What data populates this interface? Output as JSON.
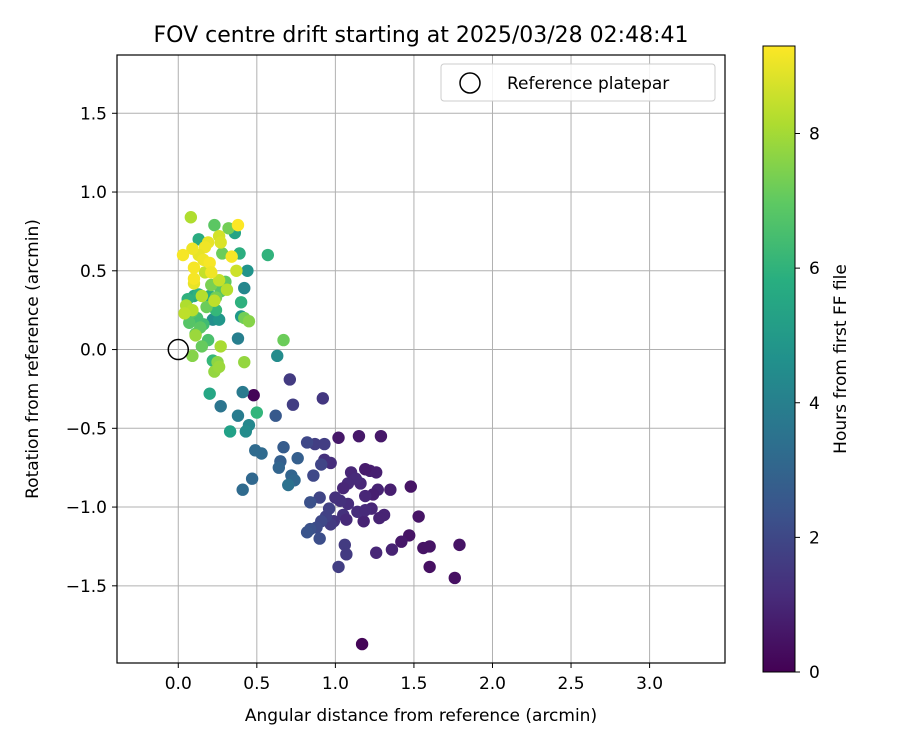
{
  "chart_data": {
    "type": "scatter",
    "title": "FOV centre drift starting at 2025/03/28 02:48:41",
    "xlabel": "Angular distance from reference (arcmin)",
    "ylabel": "Rotation from reference (arcmin)",
    "xlim": [
      -0.39,
      3.48
    ],
    "ylim": [
      -1.99,
      1.87
    ],
    "xticks": [
      0.0,
      0.5,
      1.0,
      1.5,
      2.0,
      2.5,
      3.0
    ],
    "xtick_labels": [
      "0.0",
      "0.5",
      "1.0",
      "1.5",
      "2.0",
      "2.5",
      "3.0"
    ],
    "yticks": [
      -1.5,
      -1.0,
      -0.5,
      0.0,
      0.5,
      1.0,
      1.5
    ],
    "ytick_labels": [
      "−1.5",
      "−1.0",
      "−0.5",
      "0.0",
      "0.5",
      "1.0",
      "1.5"
    ],
    "grid": true,
    "legend": {
      "position": "top-right",
      "entries": [
        {
          "label": "Reference platepar",
          "marker": "open-circle"
        }
      ]
    },
    "reference_point": {
      "x": 0.0,
      "y": 0.0
    },
    "colorbar": {
      "label": "Hours from first FF file",
      "colormap": "viridis",
      "range": [
        0,
        9.3
      ],
      "ticks": [
        0,
        2,
        4,
        6,
        8
      ],
      "tick_labels": [
        "0",
        "2",
        "4",
        "6",
        "8"
      ]
    },
    "points": [
      {
        "x": 1.17,
        "y": -1.87,
        "c": 0.1
      },
      {
        "x": 0.48,
        "y": -0.29,
        "c": 0.1
      },
      {
        "x": 1.76,
        "y": -1.45,
        "c": 0.4
      },
      {
        "x": 1.6,
        "y": -1.38,
        "c": 0.4
      },
      {
        "x": 1.79,
        "y": -1.24,
        "c": 0.5
      },
      {
        "x": 1.6,
        "y": -1.25,
        "c": 0.5
      },
      {
        "x": 1.56,
        "y": -1.26,
        "c": 0.5
      },
      {
        "x": 1.47,
        "y": -1.18,
        "c": 0.5
      },
      {
        "x": 1.42,
        "y": -1.22,
        "c": 0.6
      },
      {
        "x": 1.53,
        "y": -1.06,
        "c": 0.5
      },
      {
        "x": 1.48,
        "y": -0.87,
        "c": 0.5
      },
      {
        "x": 1.29,
        "y": -0.55,
        "c": 0.6
      },
      {
        "x": 1.15,
        "y": -0.55,
        "c": 0.6
      },
      {
        "x": 1.02,
        "y": -0.56,
        "c": 0.6
      },
      {
        "x": 1.36,
        "y": -1.27,
        "c": 0.9
      },
      {
        "x": 1.26,
        "y": -1.29,
        "c": 1.0
      },
      {
        "x": 1.18,
        "y": -1.09,
        "c": 0.9
      },
      {
        "x": 1.31,
        "y": -1.05,
        "c": 0.9
      },
      {
        "x": 1.35,
        "y": -0.89,
        "c": 0.8
      },
      {
        "x": 1.27,
        "y": -0.89,
        "c": 0.9
      },
      {
        "x": 1.24,
        "y": -0.92,
        "c": 0.8
      },
      {
        "x": 1.19,
        "y": -0.93,
        "c": 1.0
      },
      {
        "x": 1.26,
        "y": -0.78,
        "c": 0.8
      },
      {
        "x": 1.22,
        "y": -0.77,
        "c": 0.8
      },
      {
        "x": 1.19,
        "y": -0.76,
        "c": 0.7
      },
      {
        "x": 1.16,
        "y": -0.85,
        "c": 1.0
      },
      {
        "x": 1.1,
        "y": -0.78,
        "c": 1.0
      },
      {
        "x": 1.13,
        "y": -0.82,
        "c": 1.1
      },
      {
        "x": 1.08,
        "y": -0.85,
        "c": 1.1
      },
      {
        "x": 1.05,
        "y": -0.88,
        "c": 1.0
      },
      {
        "x": 0.97,
        "y": -0.72,
        "c": 1.2
      },
      {
        "x": 0.93,
        "y": -0.7,
        "c": 1.3
      },
      {
        "x": 0.92,
        "y": -0.31,
        "c": 1.5
      },
      {
        "x": 0.71,
        "y": -0.19,
        "c": 1.6
      },
      {
        "x": 0.73,
        "y": -0.35,
        "c": 1.7
      },
      {
        "x": 1.23,
        "y": -1.01,
        "c": 1.0
      },
      {
        "x": 1.28,
        "y": -1.07,
        "c": 0.9
      },
      {
        "x": 1.14,
        "y": -1.03,
        "c": 1.2
      },
      {
        "x": 1.19,
        "y": -1.02,
        "c": 1.1
      },
      {
        "x": 1.05,
        "y": -1.05,
        "c": 1.3
      },
      {
        "x": 1.07,
        "y": -1.08,
        "c": 1.1
      },
      {
        "x": 1.08,
        "y": -0.98,
        "c": 1.2
      },
      {
        "x": 1.03,
        "y": -0.96,
        "c": 1.3
      },
      {
        "x": 1.0,
        "y": -0.94,
        "c": 1.3
      },
      {
        "x": 0.99,
        "y": -1.09,
        "c": 1.4
      },
      {
        "x": 1.06,
        "y": -1.24,
        "c": 1.6
      },
      {
        "x": 1.07,
        "y": -1.3,
        "c": 1.6
      },
      {
        "x": 1.02,
        "y": -1.38,
        "c": 1.7
      },
      {
        "x": 0.97,
        "y": -1.11,
        "c": 1.6
      },
      {
        "x": 0.94,
        "y": -1.06,
        "c": 1.8
      },
      {
        "x": 0.96,
        "y": -1.01,
        "c": 1.8
      },
      {
        "x": 0.9,
        "y": -0.94,
        "c": 1.9
      },
      {
        "x": 0.91,
        "y": -1.09,
        "c": 2.0
      },
      {
        "x": 0.88,
        "y": -1.13,
        "c": 2.1
      },
      {
        "x": 0.9,
        "y": -1.2,
        "c": 2.2
      },
      {
        "x": 0.84,
        "y": -1.14,
        "c": 2.3
      },
      {
        "x": 0.82,
        "y": -1.16,
        "c": 2.4
      },
      {
        "x": 0.86,
        "y": -0.8,
        "c": 2.0
      },
      {
        "x": 0.91,
        "y": -0.73,
        "c": 1.9
      },
      {
        "x": 0.87,
        "y": -0.6,
        "c": 1.7
      },
      {
        "x": 0.93,
        "y": -0.6,
        "c": 1.7
      },
      {
        "x": 0.82,
        "y": -0.59,
        "c": 2.0
      },
      {
        "x": 0.84,
        "y": -0.97,
        "c": 2.3
      },
      {
        "x": 0.62,
        "y": -0.42,
        "c": 2.6
      },
      {
        "x": 0.67,
        "y": -0.62,
        "c": 2.7
      },
      {
        "x": 0.65,
        "y": -0.71,
        "c": 2.8
      },
      {
        "x": 0.76,
        "y": -0.69,
        "c": 2.8
      },
      {
        "x": 0.64,
        "y": -0.75,
        "c": 3.0
      },
      {
        "x": 0.72,
        "y": -0.8,
        "c": 3.0
      },
      {
        "x": 0.74,
        "y": -0.83,
        "c": 3.1
      },
      {
        "x": 0.7,
        "y": -0.86,
        "c": 3.5
      },
      {
        "x": 0.53,
        "y": -0.66,
        "c": 3.2
      },
      {
        "x": 0.49,
        "y": -0.64,
        "c": 3.2
      },
      {
        "x": 0.47,
        "y": -0.82,
        "c": 3.1
      },
      {
        "x": 0.41,
        "y": -0.89,
        "c": 3.2
      },
      {
        "x": 0.27,
        "y": -0.36,
        "c": 3.6
      },
      {
        "x": 0.38,
        "y": -0.42,
        "c": 3.9
      },
      {
        "x": 0.41,
        "y": -0.27,
        "c": 3.8
      },
      {
        "x": 0.38,
        "y": 0.07,
        "c": 4.0
      },
      {
        "x": 0.42,
        "y": 0.39,
        "c": 4.3
      },
      {
        "x": 0.45,
        "y": -0.48,
        "c": 4.3
      },
      {
        "x": 0.43,
        "y": -0.52,
        "c": 4.5
      },
      {
        "x": 0.63,
        "y": -0.04,
        "c": 4.5
      },
      {
        "x": 0.44,
        "y": 0.5,
        "c": 4.8
      },
      {
        "x": 0.4,
        "y": 0.21,
        "c": 5.0
      },
      {
        "x": 0.36,
        "y": 0.74,
        "c": 5.4
      },
      {
        "x": 0.39,
        "y": 0.61,
        "c": 5.8
      },
      {
        "x": 0.4,
        "y": 0.3,
        "c": 5.9
      },
      {
        "x": 0.22,
        "y": 0.19,
        "c": 4.6
      },
      {
        "x": 0.26,
        "y": 0.19,
        "c": 4.9
      },
      {
        "x": 0.33,
        "y": -0.52,
        "c": 5.3
      },
      {
        "x": 0.2,
        "y": -0.28,
        "c": 5.5
      },
      {
        "x": 0.57,
        "y": 0.6,
        "c": 6.0
      },
      {
        "x": 0.5,
        "y": -0.4,
        "c": 6.1
      },
      {
        "x": 0.13,
        "y": 0.7,
        "c": 5.7
      },
      {
        "x": 0.1,
        "y": 0.34,
        "c": 5.6
      },
      {
        "x": 0.06,
        "y": 0.32,
        "c": 5.9
      },
      {
        "x": 0.13,
        "y": 0.35,
        "c": 5.9
      },
      {
        "x": 0.2,
        "y": 0.34,
        "c": 5.8
      },
      {
        "x": 0.24,
        "y": 0.25,
        "c": 6.2
      },
      {
        "x": 0.22,
        "y": -0.07,
        "c": 6.2
      },
      {
        "x": 0.19,
        "y": 0.06,
        "c": 6.6
      },
      {
        "x": 0.16,
        "y": 0.16,
        "c": 6.4
      },
      {
        "x": 0.12,
        "y": 0.2,
        "c": 6.5
      },
      {
        "x": 0.09,
        "y": 0.24,
        "c": 6.8
      },
      {
        "x": 0.07,
        "y": 0.17,
        "c": 6.8
      },
      {
        "x": 0.14,
        "y": 0.14,
        "c": 6.9
      },
      {
        "x": 0.11,
        "y": 0.1,
        "c": 7.0
      },
      {
        "x": 0.15,
        "y": 0.02,
        "c": 7.1
      },
      {
        "x": 0.18,
        "y": 0.27,
        "c": 7.2
      },
      {
        "x": 0.27,
        "y": 0.37,
        "c": 6.8
      },
      {
        "x": 0.24,
        "y": 0.33,
        "c": 7.3
      },
      {
        "x": 0.21,
        "y": 0.41,
        "c": 7.4
      },
      {
        "x": 0.3,
        "y": 0.43,
        "c": 7.0
      },
      {
        "x": 0.23,
        "y": 0.79,
        "c": 6.9
      },
      {
        "x": 0.28,
        "y": 0.61,
        "c": 7.2
      },
      {
        "x": 0.32,
        "y": 0.77,
        "c": 7.3
      },
      {
        "x": 0.42,
        "y": 0.2,
        "c": 7.3
      },
      {
        "x": 0.45,
        "y": 0.18,
        "c": 7.6
      },
      {
        "x": 0.67,
        "y": 0.06,
        "c": 7.2
      },
      {
        "x": 0.25,
        "y": -0.08,
        "c": 7.7
      },
      {
        "x": 0.23,
        "y": -0.14,
        "c": 7.8
      },
      {
        "x": 0.26,
        "y": -0.11,
        "c": 7.9
      },
      {
        "x": 0.27,
        "y": 0.02,
        "c": 8.1
      },
      {
        "x": 0.42,
        "y": -0.08,
        "c": 7.8
      },
      {
        "x": 0.09,
        "y": -0.04,
        "c": 7.6
      },
      {
        "x": 0.11,
        "y": 0.09,
        "c": 7.9
      },
      {
        "x": 0.05,
        "y": 0.28,
        "c": 8.2
      },
      {
        "x": 0.09,
        "y": 0.25,
        "c": 8.3
      },
      {
        "x": 0.04,
        "y": 0.23,
        "c": 8.4
      },
      {
        "x": 0.08,
        "y": 0.84,
        "c": 8.2
      },
      {
        "x": 0.15,
        "y": 0.34,
        "c": 8.3
      },
      {
        "x": 0.17,
        "y": 0.49,
        "c": 8.5
      },
      {
        "x": 0.23,
        "y": 0.31,
        "c": 8.4
      },
      {
        "x": 0.26,
        "y": 0.44,
        "c": 8.5
      },
      {
        "x": 0.31,
        "y": 0.38,
        "c": 8.3
      },
      {
        "x": 0.37,
        "y": 0.5,
        "c": 8.6
      },
      {
        "x": 0.26,
        "y": 0.72,
        "c": 8.7
      },
      {
        "x": 0.27,
        "y": 0.68,
        "c": 8.8
      },
      {
        "x": 0.19,
        "y": 0.68,
        "c": 9.0
      },
      {
        "x": 0.17,
        "y": 0.65,
        "c": 9.1
      },
      {
        "x": 0.13,
        "y": 0.6,
        "c": 9.0
      },
      {
        "x": 0.09,
        "y": 0.64,
        "c": 9.1
      },
      {
        "x": 0.03,
        "y": 0.6,
        "c": 9.2
      },
      {
        "x": 0.1,
        "y": 0.52,
        "c": 9.2
      },
      {
        "x": 0.16,
        "y": 0.57,
        "c": 9.1
      },
      {
        "x": 0.2,
        "y": 0.55,
        "c": 9.2
      },
      {
        "x": 0.21,
        "y": 0.49,
        "c": 9.1
      },
      {
        "x": 0.1,
        "y": 0.42,
        "c": 9.0
      },
      {
        "x": 0.1,
        "y": 0.45,
        "c": 9.2
      },
      {
        "x": 0.34,
        "y": 0.59,
        "c": 9.2
      },
      {
        "x": 0.38,
        "y": 0.79,
        "c": 9.3
      }
    ]
  }
}
